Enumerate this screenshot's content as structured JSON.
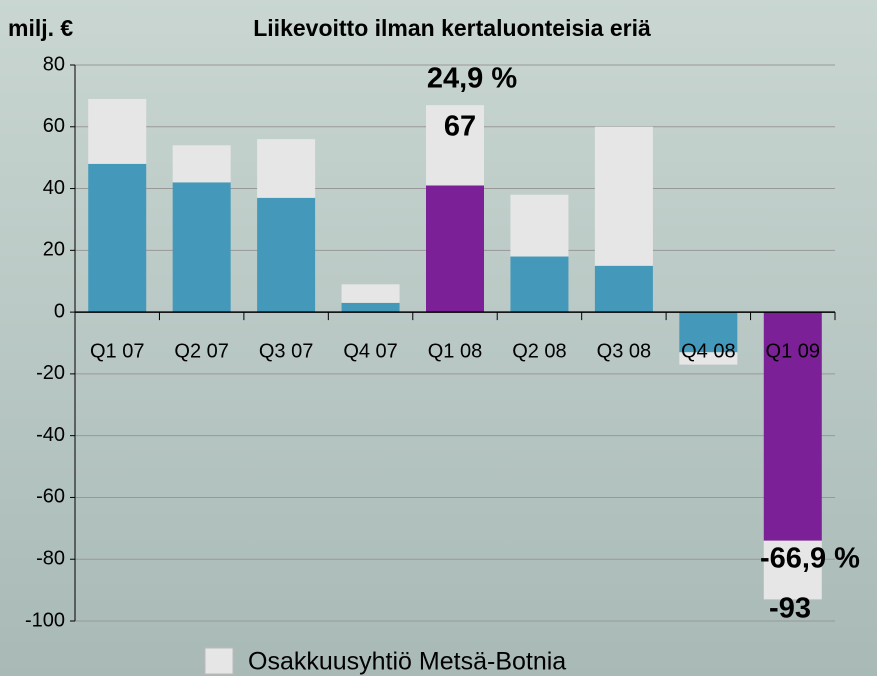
{
  "chart_data": {
    "type": "bar",
    "stacked": true,
    "title": "Liikevoitto ilman kertaluonteisia eriä",
    "y_label": "milj. €",
    "categories": [
      "Q1 07",
      "Q2 07",
      "Q3 07",
      "Q4 07",
      "Q1 08",
      "Q2 08",
      "Q3 08",
      "Q4 08",
      "Q1 09"
    ],
    "series": [
      {
        "colors": [
          "#4499bb",
          "#4499bb",
          "#4499bb",
          "#4499bb",
          "#7b2096",
          "#4499bb",
          "#4499bb",
          "#4499bb",
          "#7b2096"
        ],
        "values": [
          48,
          42,
          37,
          3,
          41,
          18,
          15,
          -13,
          -74
        ]
      },
      {
        "name": "Osakkuusyhtiö Metsä-Botnia",
        "color": "#e6e6e6",
        "values": [
          21,
          12,
          19,
          6,
          26,
          20,
          45,
          -4,
          -19
        ]
      }
    ],
    "annotations": [
      "24,9 %",
      "67",
      "-66,9 %",
      "-93"
    ],
    "ylim": [
      -100,
      80
    ],
    "yticks": [
      -100,
      -80,
      -60,
      -40,
      -20,
      0,
      20,
      40,
      60,
      80
    ],
    "grid": true,
    "legend": "bottom"
  }
}
